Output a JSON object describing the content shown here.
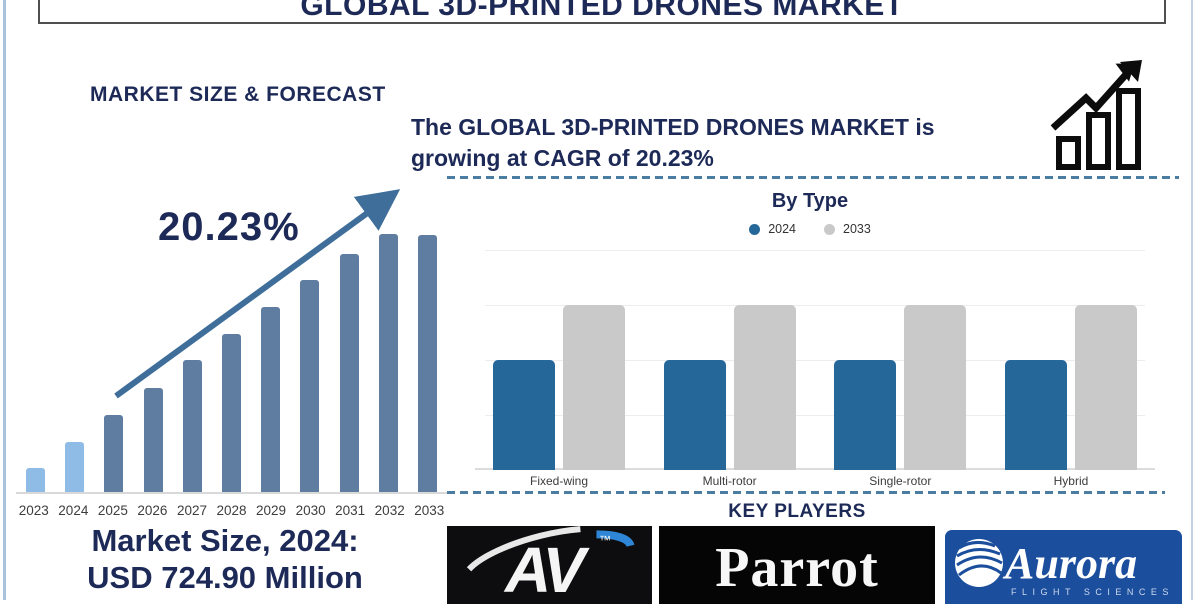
{
  "page": {
    "title": "GLOBAL 3D-PRINTED DRONES MARKET"
  },
  "forecast_section": {
    "heading": "MARKET SIZE & FORECAST",
    "cagr_big_label": "20.23%",
    "market_size_line1": "Market Size, 2024:",
    "market_size_line2": "USD 724.90 Million"
  },
  "cagr_banner": {
    "line1": "The GLOBAL 3D-PRINTED DRONES MARKET is",
    "line2": "growing at CAGR of 20.23%"
  },
  "by_type_section": {
    "title": "By Type"
  },
  "key_players": {
    "title": "KEY PLAYERS",
    "players": [
      "AV (AeroVironment)",
      "Parrot",
      "Aurora Flight Sciences"
    ]
  },
  "logos": {
    "av": {
      "text": "AV",
      "tm": "™"
    },
    "parrot": {
      "text": "Parrot"
    },
    "aurora": {
      "text": "Aurora",
      "subtext": "FLIGHT SCIENCES"
    }
  },
  "colors": {
    "navy_text": "#1d2a57",
    "arrow_steel_blue": "#3e6e99",
    "dashed_line": "#4b7da3",
    "forecast_light_bar": "#8fbbe7",
    "forecast_dark_bar": "#5f7da0",
    "bytype_blue": "#26679a",
    "bytype_gray": "#c9c9c9",
    "aurora_blue": "#1b4e9c",
    "av_swoosh_blue": "#2f86d6"
  },
  "chart_data": [
    {
      "type": "bar",
      "title": "MARKET SIZE & FORECAST",
      "categories": [
        "2023",
        "2024",
        "2025",
        "2026",
        "2027",
        "2028",
        "2029",
        "2030",
        "2031",
        "2032",
        "2033"
      ],
      "relative_heights": [
        0.097,
        0.197,
        0.301,
        0.405,
        0.514,
        0.614,
        0.718,
        0.822,
        0.923,
        1.0,
        0.996
      ],
      "light_bar_count": 2,
      "light_bar_color": "#8fbbe7",
      "dark_bar_color": "#5f7da0",
      "annotation": "20.23%",
      "annotation_meaning": "CAGR growth arrow from 2025 toward 2033",
      "known_values": {
        "2024": "USD 724.90 Million"
      },
      "value_axis": "not labeled",
      "grid": false,
      "xlabel": "",
      "ylabel": ""
    },
    {
      "type": "bar",
      "title": "By Type",
      "categories": [
        "Fixed-wing",
        "Multi-rotor",
        "Single-rotor",
        "Hybrid"
      ],
      "series": [
        {
          "name": "2024",
          "color": "#26679a",
          "relative_heights": [
            0.5,
            0.5,
            0.5,
            0.5
          ]
        },
        {
          "name": "2033",
          "color": "#c9c9c9",
          "relative_heights": [
            0.75,
            0.75,
            0.75,
            0.75
          ]
        }
      ],
      "value_axis": "not labeled",
      "legend_position": "top",
      "grid": true,
      "xlabel": "",
      "ylabel": ""
    }
  ]
}
